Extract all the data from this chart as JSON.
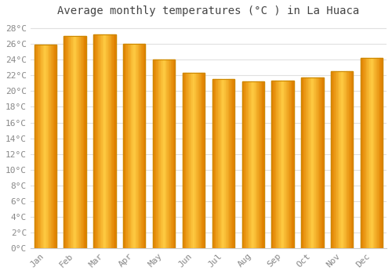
{
  "title": "Average monthly temperatures (°C ) in La Huaca",
  "months": [
    "Jan",
    "Feb",
    "Mar",
    "Apr",
    "May",
    "Jun",
    "Jul",
    "Aug",
    "Sep",
    "Oct",
    "Nov",
    "Dec"
  ],
  "values": [
    25.9,
    27.0,
    27.2,
    26.0,
    24.0,
    22.3,
    21.5,
    21.2,
    21.3,
    21.7,
    22.5,
    24.2
  ],
  "bar_color_main": "#FFA500",
  "bar_color_edge": "#CC8800",
  "bar_color_light": "#FFD060",
  "ylim": [
    0,
    29
  ],
  "ytick_step": 2,
  "background_color": "#ffffff",
  "plot_bg_color": "#ffffff",
  "grid_color": "#e0e0e0",
  "title_fontsize": 10,
  "tick_fontsize": 8,
  "tick_color": "#888888",
  "font_family": "monospace"
}
